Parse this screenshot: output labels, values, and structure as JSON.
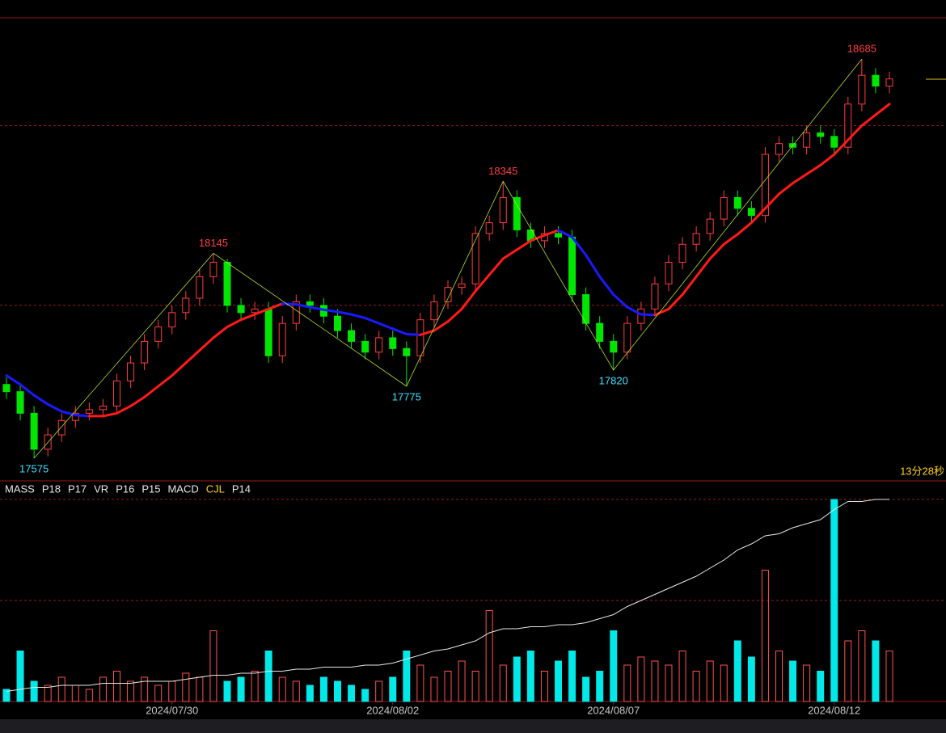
{
  "chart_data": {
    "type": "candlestick",
    "ylim": [
      17512,
      18800
    ],
    "gridlines": [
      18500,
      18000
    ],
    "up_color": "#ff3c3c",
    "down_color": "#00e600",
    "candles": {
      "open": [
        17780,
        17760,
        17700,
        17600,
        17640,
        17680,
        17700,
        17710,
        17720,
        17790,
        17840,
        17900,
        17940,
        17980,
        18020,
        18080,
        18120,
        18000,
        17980,
        17990,
        17860,
        17950,
        18010,
        18000,
        17970,
        17930,
        17900,
        17870,
        17910,
        17880,
        17860,
        17960,
        18010,
        18050,
        18060,
        18200,
        18230,
        18300,
        18210,
        18180,
        18200,
        18190,
        18030,
        17950,
        17900,
        17870,
        17950,
        17990,
        18060,
        18120,
        18170,
        18200,
        18240,
        18300,
        18270,
        18250,
        18420,
        18450,
        18440,
        18480,
        18470,
        18440,
        18560,
        18640,
        18610
      ],
      "high": [
        17800,
        17780,
        17720,
        17660,
        17700,
        17720,
        17730,
        17740,
        17810,
        17860,
        17920,
        17960,
        18000,
        18040,
        18100,
        18145,
        18130,
        18020,
        18010,
        18010,
        17970,
        18030,
        18030,
        18020,
        17990,
        17950,
        17920,
        17930,
        17930,
        17900,
        17980,
        18030,
        18070,
        18080,
        18220,
        18250,
        18345,
        18320,
        18230,
        18220,
        18220,
        18210,
        18050,
        17970,
        17920,
        17970,
        18010,
        18080,
        18140,
        18190,
        18220,
        18260,
        18320,
        18320,
        18290,
        18440,
        18470,
        18470,
        18500,
        18500,
        18490,
        18580,
        18685,
        18660,
        18650
      ],
      "low": [
        17740,
        17680,
        17575,
        17580,
        17620,
        17660,
        17680,
        17690,
        17700,
        17770,
        17820,
        17880,
        17920,
        17960,
        18000,
        18060,
        17980,
        17960,
        17960,
        17840,
        17840,
        17930,
        17980,
        17950,
        17910,
        17880,
        17850,
        17850,
        17860,
        17775,
        17840,
        17940,
        17990,
        18030,
        18040,
        18180,
        18210,
        18190,
        18160,
        18160,
        18170,
        18010,
        17930,
        17880,
        17820,
        17850,
        17930,
        17970,
        18040,
        18100,
        18150,
        18180,
        18220,
        18250,
        18230,
        18230,
        18400,
        18420,
        18420,
        18450,
        18420,
        18420,
        18540,
        18590,
        18590
      ],
      "close": [
        17760,
        17700,
        17600,
        17640,
        17680,
        17700,
        17710,
        17720,
        17790,
        17840,
        17900,
        17940,
        17980,
        18020,
        18080,
        18120,
        18000,
        17980,
        17990,
        17860,
        17950,
        18010,
        18000,
        17970,
        17930,
        17900,
        17870,
        17910,
        17880,
        17860,
        17960,
        18010,
        18050,
        18060,
        18200,
        18230,
        18300,
        18210,
        18180,
        18200,
        18190,
        18030,
        17950,
        17900,
        17870,
        17950,
        17990,
        18060,
        18120,
        18170,
        18200,
        18240,
        18300,
        18270,
        18250,
        18420,
        18450,
        18440,
        18480,
        18470,
        18440,
        18560,
        18640,
        18610,
        18630
      ]
    },
    "ma": {
      "up_color": "#ff1a1a",
      "down_color": "#1a1aff",
      "values": [
        17805,
        17780,
        17750,
        17725,
        17705,
        17695,
        17692,
        17692,
        17700,
        17720,
        17745,
        17775,
        17805,
        17840,
        17875,
        17910,
        17940,
        17960,
        17975,
        17990,
        18005,
        18003,
        17995,
        17988,
        17982,
        17975,
        17965,
        17950,
        17935,
        17920,
        17918,
        17930,
        17955,
        17990,
        18040,
        18085,
        18130,
        18155,
        18180,
        18195,
        18209,
        18190,
        18140,
        18080,
        18030,
        17995,
        17975,
        17973,
        17990,
        18030,
        18080,
        18130,
        18170,
        18198,
        18230,
        18270,
        18310,
        18340,
        18365,
        18390,
        18420,
        18460,
        18500,
        18530,
        18560
      ]
    },
    "pivots": [
      [
        2,
        "low"
      ],
      [
        15,
        "high"
      ],
      [
        29,
        "low"
      ],
      [
        36,
        "high"
      ],
      [
        44,
        "low"
      ],
      [
        62,
        "high"
      ]
    ],
    "high_label_color": "#ff4040",
    "low_label_color": "#40e0ff",
    "countdown": "13分28秒",
    "tabs": [
      "MASS",
      "P18",
      "P17",
      "VR",
      "P16",
      "P15",
      "MACD",
      "CJL",
      "P14"
    ],
    "active_tab": 7,
    "xticks": [
      {
        "value": 12,
        "label": "2024/07/30"
      },
      {
        "value": 28,
        "label": "2024/08/02"
      },
      {
        "value": 44,
        "label": "2024/08/07"
      },
      {
        "value": 60,
        "label": "2024/08/12"
      }
    ],
    "volume": {
      "ylim": [
        0,
        100
      ],
      "gridlines": [
        100,
        50
      ],
      "up_color": "#ff5050",
      "down_color": "#00e8e8",
      "values": [
        6,
        25,
        10,
        8,
        12,
        8,
        6,
        12,
        15,
        10,
        12,
        8,
        10,
        14,
        12,
        35,
        10,
        12,
        15,
        25,
        12,
        10,
        8,
        12,
        10,
        8,
        6,
        10,
        12,
        25,
        18,
        12,
        15,
        20,
        15,
        45,
        18,
        22,
        25,
        15,
        20,
        25,
        12,
        15,
        35,
        18,
        22,
        20,
        18,
        25,
        15,
        20,
        18,
        30,
        22,
        65,
        25,
        20,
        18,
        15,
        100,
        30,
        35,
        30,
        25
      ],
      "line": {
        "color": "#e8e8e8",
        "values": [
          5,
          6,
          7,
          7,
          8,
          8,
          8,
          9,
          9,
          9,
          10,
          10,
          10,
          11,
          12,
          13,
          13,
          14,
          14,
          15,
          15,
          16,
          16,
          17,
          17,
          17,
          18,
          18,
          19,
          21,
          23,
          25,
          26,
          28,
          30,
          34,
          36,
          36,
          37,
          37,
          38,
          38,
          39,
          41,
          43,
          47,
          50,
          53,
          56,
          59,
          62,
          66,
          70,
          75,
          78,
          82,
          83,
          86,
          88,
          90,
          95,
          99,
          99,
          100,
          100
        ]
      }
    }
  }
}
